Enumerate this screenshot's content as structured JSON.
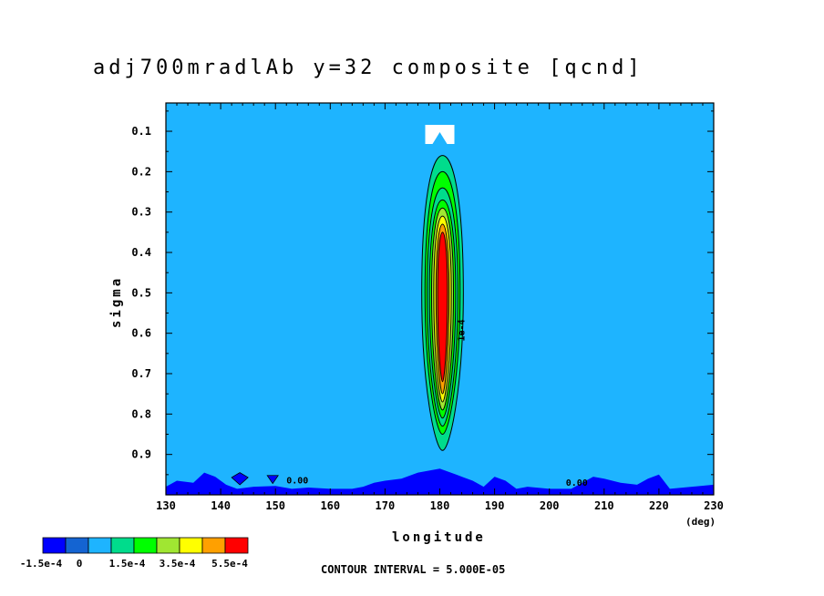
{
  "chart_data": {
    "type": "heatmap",
    "title": "adj700mradlAb y=32 composite [qcnd]",
    "xlabel": "longitude",
    "xunit": "(deg)",
    "ylabel": "sigma",
    "xlim": [
      130,
      230
    ],
    "ylim": [
      1.0,
      0.03
    ],
    "xticks": [
      130,
      140,
      150,
      160,
      170,
      180,
      190,
      200,
      210,
      220,
      230
    ],
    "yticks": [
      0.1,
      0.2,
      0.3,
      0.4,
      0.5,
      0.6,
      0.7,
      0.8,
      0.9
    ],
    "contour_interval": "CONTOUR INTERVAL = 5.000E-05",
    "colorbar": {
      "colors": [
        "#0000ff",
        "#1464d2",
        "#1eb4ff",
        "#00dc8c",
        "#00ff00",
        "#a0e632",
        "#ffff00",
        "#ffa000",
        "#ff0000"
      ],
      "labels": [
        "-1.5e-4",
        "0",
        "1.5e-4",
        "3.5e-4",
        "5.5e-4"
      ]
    },
    "background_level_color": "#1eb4ff",
    "negative_region_color": "#0000ff",
    "plume": {
      "center_lon": 180.5,
      "sigma_top": 0.16,
      "sigma_bottom": 0.89,
      "peak_sigma": 0.55,
      "levels": [
        {
          "value": 5e-05,
          "color": "#00dc8c",
          "half_width_deg": 3.8,
          "top": 0.16,
          "bottom": 0.89
        },
        {
          "value": 0.0001,
          "color": "#00ff00",
          "half_width_deg": 3.2,
          "top": 0.2,
          "bottom": 0.85
        },
        {
          "value": 0.00015,
          "color": "#00dc8c",
          "half_width_deg": 2.8,
          "top": 0.24,
          "bottom": 0.83
        },
        {
          "value": 0.0002,
          "color": "#00ff00",
          "half_width_deg": 2.4,
          "top": 0.27,
          "bottom": 0.81
        },
        {
          "value": 0.00025,
          "color": "#a0e632",
          "half_width_deg": 2.0,
          "top": 0.29,
          "bottom": 0.79
        },
        {
          "value": 0.00035,
          "color": "#ffff00",
          "half_width_deg": 1.6,
          "top": 0.31,
          "bottom": 0.77
        },
        {
          "value": 0.00045,
          "color": "#ffa000",
          "half_width_deg": 1.2,
          "top": 0.33,
          "bottom": 0.75
        },
        {
          "value": 0.00055,
          "color": "#ff0000",
          "half_width_deg": 0.9,
          "top": 0.35,
          "bottom": 0.72
        }
      ]
    },
    "surface_negative": {
      "lon": [
        130,
        132,
        135,
        137,
        139,
        141,
        143,
        146,
        150,
        153,
        156,
        160,
        164,
        166,
        168,
        170,
        173,
        176,
        180,
        183,
        186,
        188,
        190,
        192,
        194,
        196,
        200,
        204,
        206,
        208,
        210,
        213,
        216,
        218,
        220,
        222,
        226,
        230
      ],
      "sigma": [
        0.98,
        0.965,
        0.97,
        0.945,
        0.955,
        0.975,
        0.985,
        0.98,
        0.978,
        0.985,
        0.982,
        0.985,
        0.985,
        0.98,
        0.97,
        0.965,
        0.96,
        0.945,
        0.935,
        0.95,
        0.965,
        0.98,
        0.955,
        0.965,
        0.985,
        0.98,
        0.985,
        0.985,
        0.97,
        0.955,
        0.96,
        0.97,
        0.975,
        0.96,
        0.95,
        0.985,
        0.98,
        0.975
      ]
    },
    "contour_labels": [
      {
        "text": "0.00",
        "lon": 152,
        "sigma": 0.972
      },
      {
        "text": "0.00",
        "lon": 203,
        "sigma": 0.978
      },
      {
        "text": "1e-4",
        "lon": 184.5,
        "sigma": 0.62
      }
    ],
    "top_marker_lon": 180
  }
}
